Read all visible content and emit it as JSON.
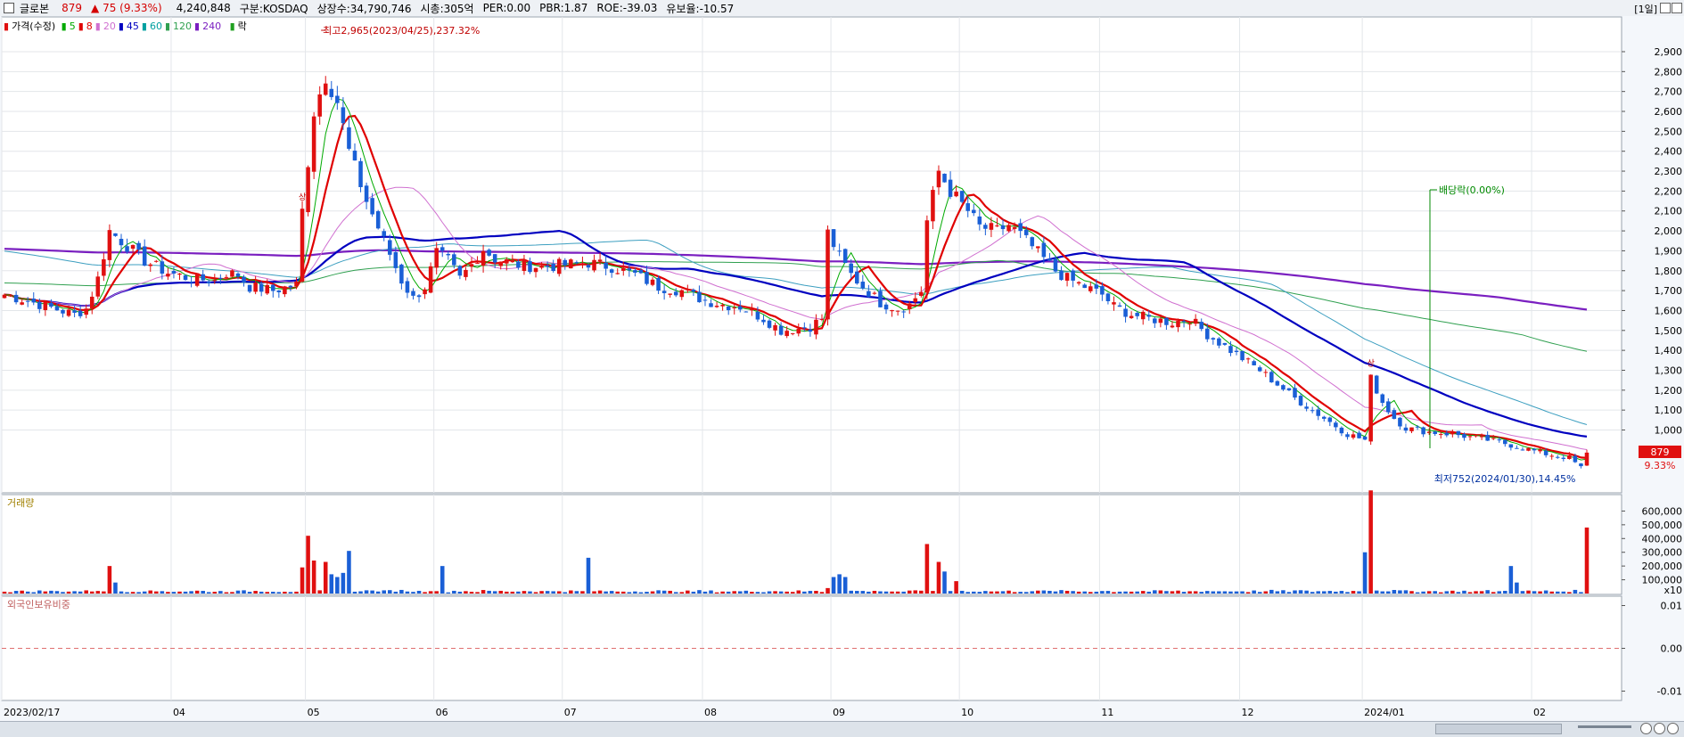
{
  "header": {
    "name": "글로본",
    "price": "879",
    "change": "▲ 75 (9.33%)",
    "volume": "4,240,848",
    "market": "구분:KOSDAQ",
    "shares": "상장수:34,790,746",
    "market_cap": "시총:305억",
    "per": "PER:0.00",
    "pbr": "PBR:1.87",
    "roe": "ROE:-39.03",
    "float": "유보율:-10.57",
    "period": "[1일]"
  },
  "legend": {
    "price": "가격(수정)",
    "ma": [
      {
        "label": "5",
        "color": "#00aa00"
      },
      {
        "label": "8",
        "color": "#e00000"
      },
      {
        "label": "20",
        "color": "#d070d0"
      },
      {
        "label": "45",
        "color": "#0000c0"
      },
      {
        "label": "60",
        "color": "#00a0a0"
      },
      {
        "label": "120",
        "color": "#30a050"
      },
      {
        "label": "240",
        "color": "#7a1fc0"
      }
    ],
    "ex": "락"
  },
  "colors": {
    "up": "#e01010",
    "down": "#1a5fd6",
    "bg": "#ffffff",
    "grid": "#e3e6ea"
  },
  "chart_data": {
    "type": "candlestick",
    "price_axis": {
      "ylim": [
        680,
        3070
      ],
      "ticks": [
        1000,
        1100,
        1200,
        1300,
        1400,
        1500,
        1600,
        1700,
        1800,
        1900,
        2000,
        2100,
        2200,
        2300,
        2400,
        2500,
        2600,
        2700,
        2800,
        2900
      ]
    },
    "x_labels": [
      "2023/02/17",
      "04",
      "05",
      "06",
      "07",
      "08",
      "09",
      "10",
      "11",
      "12",
      "2024/01",
      "02"
    ],
    "annotations": {
      "high": "최고2,965(2023/04/25),237.32%",
      "low": "최저752(2024/01/30),14.45%",
      "dividend": "배당락(0.00%)",
      "marker": "상"
    },
    "current": {
      "price": "879",
      "pct": "9.33%"
    },
    "volume": {
      "title": "거래량",
      "ylim": [
        0,
        700000
      ],
      "ticks": [
        100000,
        200000,
        300000,
        400000,
        500000,
        600000
      ],
      "tick_labels": [
        "100,000",
        "200,000",
        "300,000",
        "400,000",
        "500,000",
        "600,000"
      ],
      "unit": "x10"
    },
    "foreign": {
      "title": "외국인보유비중",
      "ticks": [
        0.01,
        0.0,
        -0.01
      ],
      "tick_labels": [
        "0.01",
        "0.00",
        "-0.01"
      ]
    },
    "keypoints": [
      [
        0,
        1680
      ],
      [
        5,
        1640
      ],
      [
        12,
        1580
      ],
      [
        14,
        1610
      ],
      [
        16,
        1760
      ],
      [
        18,
        2000
      ],
      [
        20,
        1950
      ],
      [
        24,
        1850
      ],
      [
        28,
        1790
      ],
      [
        32,
        1760
      ],
      [
        36,
        1750
      ],
      [
        38,
        1790
      ],
      [
        40,
        1780
      ],
      [
        42,
        1720
      ],
      [
        46,
        1700
      ],
      [
        50,
        1730
      ],
      [
        51,
        2100
      ],
      [
        53,
        2600
      ],
      [
        55,
        2780
      ],
      [
        57,
        2650
      ],
      [
        59,
        2400
      ],
      [
        62,
        2150
      ],
      [
        65,
        1950
      ],
      [
        68,
        1750
      ],
      [
        70,
        1660
      ],
      [
        72,
        1720
      ],
      [
        74,
        1890
      ],
      [
        76,
        1850
      ],
      [
        78,
        1760
      ],
      [
        80,
        1830
      ],
      [
        82,
        1910
      ],
      [
        84,
        1860
      ],
      [
        88,
        1830
      ],
      [
        92,
        1820
      ],
      [
        96,
        1830
      ],
      [
        100,
        1840
      ],
      [
        104,
        1820
      ],
      [
        108,
        1780
      ],
      [
        112,
        1720
      ],
      [
        116,
        1700
      ],
      [
        120,
        1650
      ],
      [
        123,
        1630
      ],
      [
        126,
        1620
      ],
      [
        130,
        1560
      ],
      [
        133,
        1500
      ],
      [
        136,
        1510
      ],
      [
        138,
        1520
      ],
      [
        140,
        1560
      ],
      [
        141,
        1990
      ],
      [
        143,
        1870
      ],
      [
        145,
        1780
      ],
      [
        147,
        1720
      ],
      [
        150,
        1640
      ],
      [
        153,
        1610
      ],
      [
        155,
        1630
      ],
      [
        157,
        1700
      ],
      [
        158,
        2050
      ],
      [
        160,
        2300
      ],
      [
        162,
        2200
      ],
      [
        165,
        2100
      ],
      [
        167,
        2020
      ],
      [
        170,
        2000
      ],
      [
        172,
        2030
      ],
      [
        174,
        1980
      ],
      [
        176,
        1920
      ],
      [
        178,
        1860
      ],
      [
        180,
        1800
      ],
      [
        182,
        1760
      ],
      [
        185,
        1720
      ],
      [
        188,
        1680
      ],
      [
        190,
        1620
      ],
      [
        193,
        1580
      ],
      [
        196,
        1560
      ],
      [
        200,
        1540
      ],
      [
        203,
        1560
      ],
      [
        206,
        1480
      ],
      [
        209,
        1420
      ],
      [
        212,
        1360
      ],
      [
        215,
        1300
      ],
      [
        218,
        1230
      ],
      [
        221,
        1160
      ],
      [
        224,
        1100
      ],
      [
        227,
        1040
      ],
      [
        230,
        980
      ],
      [
        233,
        950
      ],
      [
        234,
        1260
      ],
      [
        236,
        1140
      ],
      [
        238,
        1060
      ],
      [
        240,
        1010
      ],
      [
        244,
        990
      ],
      [
        248,
        980
      ],
      [
        252,
        960
      ],
      [
        256,
        940
      ],
      [
        260,
        910
      ],
      [
        264,
        880
      ],
      [
        268,
        860
      ],
      [
        270,
        810
      ],
      [
        271,
        880
      ]
    ]
  }
}
